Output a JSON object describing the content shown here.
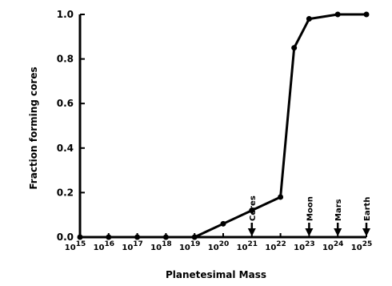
{
  "chart_data": {
    "type": "line",
    "title": "",
    "xlabel": "Planetesimal  Mass",
    "ylabel": "Fraction  forming  cores",
    "x_scale": "log",
    "xlim": [
      1000000000000000.0,
      1e+25
    ],
    "ylim": [
      0.0,
      1.0
    ],
    "x_tick_base": "10",
    "x_tick_exponents": [
      "15",
      "16",
      "17",
      "18",
      "19",
      "20",
      "21",
      "22",
      "23",
      "24",
      "25"
    ],
    "y_ticks": [
      "0.0",
      "0.2",
      "0.4",
      "0.6",
      "0.8",
      "1.0"
    ],
    "grid": false,
    "series": [
      {
        "x": [
          1000000000000000.0,
          1e+16,
          1e+17,
          1e+18,
          1e+19,
          1e+20,
          1e+21,
          1e+22,
          3e+22,
          1e+23,
          1e+24,
          1e+25
        ],
        "y": [
          0.0,
          0.0,
          0.0,
          0.0,
          0.0,
          0.06,
          0.12,
          0.18,
          0.85,
          0.98,
          1.0,
          1.0
        ]
      }
    ],
    "annotations": [
      {
        "label": "Ceres",
        "x": 1e+21
      },
      {
        "label": "Moon",
        "x": 1e+23
      },
      {
        "label": "Mars",
        "x": 1e+24
      },
      {
        "label": "Earth",
        "x": 1e+25
      }
    ]
  }
}
